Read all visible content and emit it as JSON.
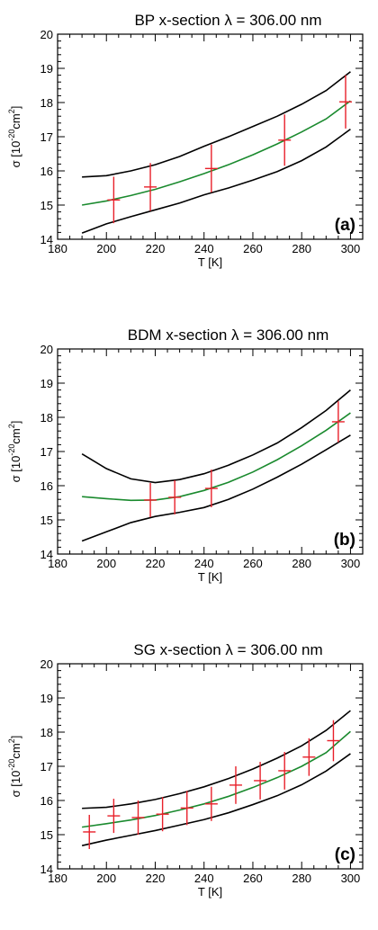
{
  "colors": {
    "bound": "#000000",
    "fit": "#1a8a2e",
    "measurement": "#e8202a",
    "frame": "#000000"
  },
  "chart_data": [
    {
      "type": "line",
      "panel_label": "(a)",
      "title_prefix": "BP x-section ",
      "title_lambda": "λ",
      "title_suffix": " = 306.00 nm",
      "xlabel": "T [K]",
      "ylabel_main": "σ [10",
      "ylabel_sup_minus": "-20",
      "ylabel_mid": "cm",
      "ylabel_sup": "2",
      "ylabel_end": "]",
      "xlim": [
        180,
        305
      ],
      "ylim": [
        14,
        20
      ],
      "xticks": [
        180,
        200,
        220,
        240,
        260,
        280,
        300
      ],
      "yticks": [
        14,
        15,
        16,
        17,
        18,
        19,
        20
      ],
      "fit_curve": {
        "x": [
          190,
          200,
          210,
          220,
          230,
          240,
          250,
          260,
          270,
          280,
          290,
          300
        ],
        "y": [
          15.0,
          15.12,
          15.28,
          15.46,
          15.68,
          15.92,
          16.18,
          16.47,
          16.79,
          17.14,
          17.52,
          18.05
        ]
      },
      "upper_bound": {
        "x": [
          190,
          200,
          210,
          220,
          230,
          240,
          250,
          260,
          270,
          280,
          290,
          300
        ],
        "y": [
          15.82,
          15.86,
          16.0,
          16.18,
          16.42,
          16.72,
          17.0,
          17.3,
          17.6,
          17.95,
          18.35,
          18.9
        ]
      },
      "lower_bound": {
        "x": [
          190,
          200,
          210,
          220,
          230,
          240,
          250,
          260,
          270,
          280,
          290,
          300
        ],
        "y": [
          14.18,
          14.45,
          14.66,
          14.86,
          15.06,
          15.3,
          15.5,
          15.73,
          15.98,
          16.3,
          16.7,
          17.22
        ]
      },
      "measurements": [
        {
          "T": 203,
          "sigma": 15.15,
          "err": 0.68
        },
        {
          "T": 218,
          "sigma": 15.53,
          "err": 0.7
        },
        {
          "T": 243,
          "sigma": 16.07,
          "err": 0.7
        },
        {
          "T": 273,
          "sigma": 16.9,
          "err": 0.75
        },
        {
          "T": 298,
          "sigma": 18.02,
          "err": 0.78
        }
      ]
    },
    {
      "type": "line",
      "panel_label": "(b)",
      "title_prefix": "BDM x-section ",
      "title_lambda": "λ",
      "title_suffix": " = 306.00 nm",
      "xlabel": "T [K]",
      "ylabel_main": "σ [10",
      "ylabel_sup_minus": "-20",
      "ylabel_mid": "cm",
      "ylabel_sup": "2",
      "ylabel_end": "]",
      "xlim": [
        180,
        305
      ],
      "ylim": [
        14,
        20
      ],
      "xticks": [
        180,
        200,
        220,
        240,
        260,
        280,
        300
      ],
      "yticks": [
        14,
        15,
        16,
        17,
        18,
        19,
        20
      ],
      "fit_curve": {
        "x": [
          190,
          200,
          210,
          220,
          230,
          240,
          250,
          260,
          270,
          280,
          290,
          300
        ],
        "y": [
          15.68,
          15.62,
          15.57,
          15.58,
          15.68,
          15.86,
          16.1,
          16.4,
          16.76,
          17.17,
          17.62,
          18.13
        ]
      },
      "upper_bound": {
        "x": [
          190,
          200,
          210,
          220,
          230,
          240,
          250,
          260,
          270,
          280,
          290,
          300
        ],
        "y": [
          16.93,
          16.5,
          16.2,
          16.09,
          16.18,
          16.35,
          16.6,
          16.9,
          17.25,
          17.7,
          18.2,
          18.8
        ]
      },
      "lower_bound": {
        "x": [
          190,
          200,
          210,
          220,
          230,
          240,
          250,
          260,
          270,
          280,
          290,
          300
        ],
        "y": [
          14.38,
          14.65,
          14.92,
          15.1,
          15.22,
          15.36,
          15.6,
          15.9,
          16.25,
          16.63,
          17.05,
          17.48
        ]
      },
      "measurements": [
        {
          "T": 218,
          "sigma": 15.58,
          "err": 0.5
        },
        {
          "T": 228,
          "sigma": 15.66,
          "err": 0.5
        },
        {
          "T": 243,
          "sigma": 15.92,
          "err": 0.55
        },
        {
          "T": 295,
          "sigma": 17.87,
          "err": 0.6
        }
      ]
    },
    {
      "type": "line",
      "panel_label": "(c)",
      "title_prefix": "SG x-section ",
      "title_lambda": "λ",
      "title_suffix": " = 306.00 nm",
      "xlabel": "T [K]",
      "ylabel_main": "σ [10",
      "ylabel_sup_minus": "-20",
      "ylabel_mid": "cm",
      "ylabel_sup": "2",
      "ylabel_end": "]",
      "xlim": [
        180,
        305
      ],
      "ylim": [
        14,
        20
      ],
      "xticks": [
        180,
        200,
        220,
        240,
        260,
        280,
        300
      ],
      "yticks": [
        14,
        15,
        16,
        17,
        18,
        19,
        20
      ],
      "fit_curve": {
        "x": [
          190,
          200,
          210,
          220,
          230,
          240,
          250,
          260,
          270,
          280,
          290,
          300
        ],
        "y": [
          15.22,
          15.32,
          15.43,
          15.56,
          15.72,
          15.9,
          16.12,
          16.38,
          16.67,
          17.0,
          17.4,
          18.02
        ]
      },
      "upper_bound": {
        "x": [
          190,
          200,
          210,
          220,
          230,
          240,
          250,
          260,
          270,
          280,
          290,
          300
        ],
        "y": [
          15.77,
          15.8,
          15.9,
          16.03,
          16.2,
          16.4,
          16.64,
          16.92,
          17.24,
          17.6,
          18.05,
          18.63
        ]
      },
      "lower_bound": {
        "x": [
          190,
          200,
          210,
          220,
          230,
          240,
          250,
          260,
          270,
          280,
          290,
          300
        ],
        "y": [
          14.68,
          14.84,
          14.98,
          15.12,
          15.28,
          15.44,
          15.64,
          15.88,
          16.14,
          16.46,
          16.86,
          17.37
        ]
      },
      "measurements": [
        {
          "T": 193,
          "sigma": 15.08,
          "err": 0.5
        },
        {
          "T": 203,
          "sigma": 15.55,
          "err": 0.5
        },
        {
          "T": 213,
          "sigma": 15.5,
          "err": 0.5
        },
        {
          "T": 223,
          "sigma": 15.6,
          "err": 0.5
        },
        {
          "T": 233,
          "sigma": 15.78,
          "err": 0.5
        },
        {
          "T": 243,
          "sigma": 15.9,
          "err": 0.5
        },
        {
          "T": 253,
          "sigma": 16.45,
          "err": 0.55
        },
        {
          "T": 263,
          "sigma": 16.58,
          "err": 0.55
        },
        {
          "T": 273,
          "sigma": 16.87,
          "err": 0.55
        },
        {
          "T": 283,
          "sigma": 17.27,
          "err": 0.55
        },
        {
          "T": 293,
          "sigma": 17.75,
          "err": 0.6
        }
      ]
    }
  ]
}
